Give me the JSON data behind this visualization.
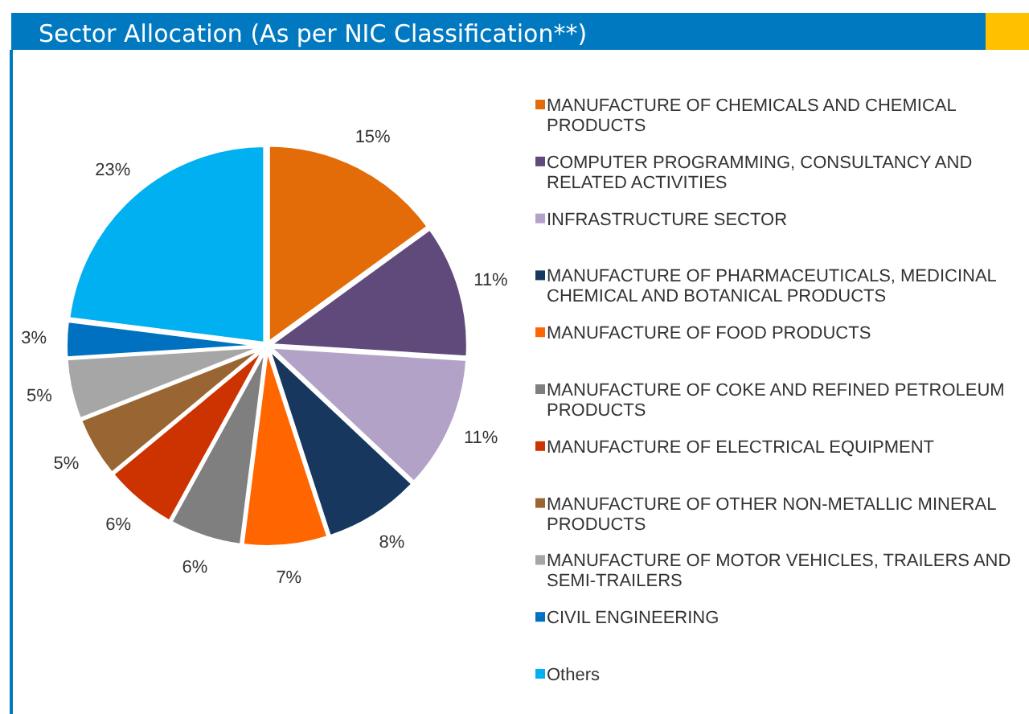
{
  "chart_data": {
    "type": "pie",
    "title": "Sector Allocation (As per NIC Classification**)",
    "categories": [
      "MANUFACTURE OF CHEMICALS AND CHEMICAL PRODUCTS",
      "COMPUTER PROGRAMMING, CONSULTANCY AND RELATED ACTIVITIES",
      "INFRASTRUCTURE SECTOR",
      "MANUFACTURE OF PHARMACEUTICALS, MEDICINAL CHEMICAL AND BOTANICAL PRODUCTS",
      "MANUFACTURE OF FOOD PRODUCTS",
      "MANUFACTURE OF COKE AND REFINED PETROLEUM PRODUCTS",
      "MANUFACTURE OF ELECTRICAL EQUIPMENT",
      "MANUFACTURE OF OTHER NON-METALLIC MINERAL PRODUCTS",
      "MANUFACTURE OF MOTOR VEHICLES, TRAILERS AND SEMI-TRAILERS",
      "CIVIL ENGINEERING",
      "Others"
    ],
    "values": [
      15,
      11,
      11,
      8,
      7,
      6,
      6,
      5,
      5,
      3,
      23
    ],
    "value_labels": [
      "15%",
      "11%",
      "11%",
      "8%",
      "7%",
      "6%",
      "6%",
      "5%",
      "5%",
      "3%",
      "23%"
    ],
    "colors": [
      "#e36c09",
      "#604a7b",
      "#b3a2c7",
      "#17375e",
      "#ff6600",
      "#7f7f7f",
      "#cc3300",
      "#996633",
      "#a6a6a6",
      "#0070c0",
      "#00b0f0"
    ],
    "legend": "right"
  }
}
